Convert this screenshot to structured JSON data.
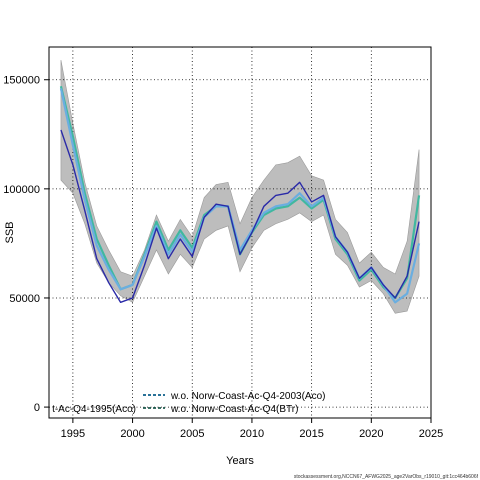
{
  "chart_data": {
    "type": "line",
    "xlabel": "Years",
    "ylabel": "SSB",
    "xlim": [
      1993,
      2025
    ],
    "ylim": [
      -5000,
      165000
    ],
    "x_ticks": [
      1995,
      2000,
      2005,
      2010,
      2015,
      2020,
      2025
    ],
    "y_ticks": [
      0,
      50000,
      100000,
      150000
    ],
    "grid": true,
    "legend_position": "bottom-left",
    "legend": [
      {
        "label": "t-Ac-Q4-1995(Aco)",
        "color": "#1c1c8c",
        "style": "solid"
      },
      {
        "label": "w.o. Norw-Coast-Ac-Q4-2003(Aco)",
        "color": "#0d5f8a",
        "style": "dashed"
      },
      {
        "label": "w.o. Norw-Coast-Ac-Q4(BTr)",
        "color": "#1f5b4e",
        "style": "dashed"
      }
    ],
    "x": [
      1994,
      1995,
      1996,
      1997,
      1998,
      1999,
      2000,
      2001,
      2002,
      2003,
      2004,
      2005,
      2006,
      2007,
      2008,
      2009,
      2010,
      2011,
      2012,
      2013,
      2014,
      2015,
      2016,
      2017,
      2018,
      2019,
      2020,
      2021,
      2022,
      2023,
      2024
    ],
    "band": {
      "upper": [
        159000,
        130000,
        103000,
        83000,
        72000,
        62000,
        60000,
        72000,
        88000,
        76000,
        86000,
        78000,
        96000,
        102000,
        103000,
        84000,
        96000,
        104000,
        111000,
        112000,
        115000,
        106000,
        104000,
        86000,
        80000,
        66000,
        71000,
        64000,
        61000,
        76000,
        118000
      ],
      "lower": [
        104000,
        98000,
        84000,
        66000,
        57000,
        51000,
        48000,
        60000,
        72000,
        61000,
        70000,
        64000,
        77000,
        81000,
        83000,
        62000,
        73000,
        81000,
        84000,
        86000,
        89000,
        85000,
        88000,
        70000,
        65000,
        55000,
        58000,
        52000,
        43000,
        44000,
        60000
      ]
    },
    "series": [
      {
        "name": "t-Ac-Q4-1995(Aco)",
        "color": "#2a2aa8",
        "values": [
          127000,
          111000,
          90000,
          68000,
          57000,
          48000,
          50000,
          65000,
          82000,
          68000,
          77000,
          69000,
          87000,
          93000,
          92000,
          70000,
          80000,
          92000,
          97000,
          98000,
          103000,
          94000,
          97000,
          78000,
          71000,
          59000,
          64000,
          56000,
          50000,
          60000,
          85000
        ]
      },
      {
        "name": "light-blue",
        "color": "#6aaee0",
        "values": [
          146000,
          120000,
          95000,
          74000,
          63000,
          54000,
          56000,
          69000,
          83000,
          70000,
          79000,
          71000,
          87000,
          92000,
          92000,
          72000,
          81000,
          89000,
          92000,
          93000,
          98000,
          92000,
          96000,
          78000,
          71000,
          59000,
          64000,
          56000,
          48000,
          52000,
          75000
        ]
      },
      {
        "name": "teal",
        "color": "#40b8a0",
        "values": [
          147000,
          124000,
          98000,
          77000,
          65000,
          54000,
          56000,
          70000,
          85000,
          72000,
          81000,
          73000,
          88000,
          92000,
          92000,
          70000,
          80000,
          88000,
          91000,
          92000,
          96000,
          91000,
          95000,
          77000,
          70000,
          58000,
          63000,
          55000,
          50000,
          59000,
          97000
        ]
      }
    ]
  },
  "footer": "stockassessment.org,NCCN67_AFWG2025_age2VarObs_r19010_git:1cc464b606f"
}
